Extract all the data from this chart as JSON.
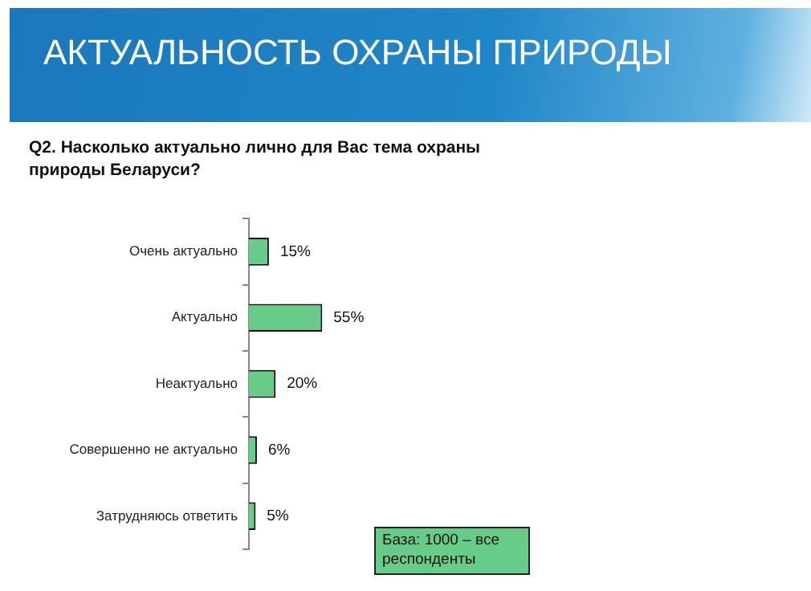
{
  "chart_data": {
    "type": "bar",
    "orientation": "horizontal",
    "title": "АКТУАЛЬНОСТЬ ОХРАНЫ ПРИРОДЫ",
    "subtitle": "Q2. Насколько актуально лично для Вас тема охраны природы Беларуси?",
    "categories": [
      "Очень актуально",
      "Актуально",
      "Неактуально",
      "Совершенно не актуально",
      "Затрудняюсь ответить"
    ],
    "values": [
      15,
      55,
      20,
      6,
      5
    ],
    "value_labels": [
      "15%",
      "55%",
      "20%",
      "6%",
      "5%"
    ],
    "color": "#66cc88",
    "tick_labels": "y",
    "annotations": [
      "База: 1000 – все респонденты"
    ]
  }
}
